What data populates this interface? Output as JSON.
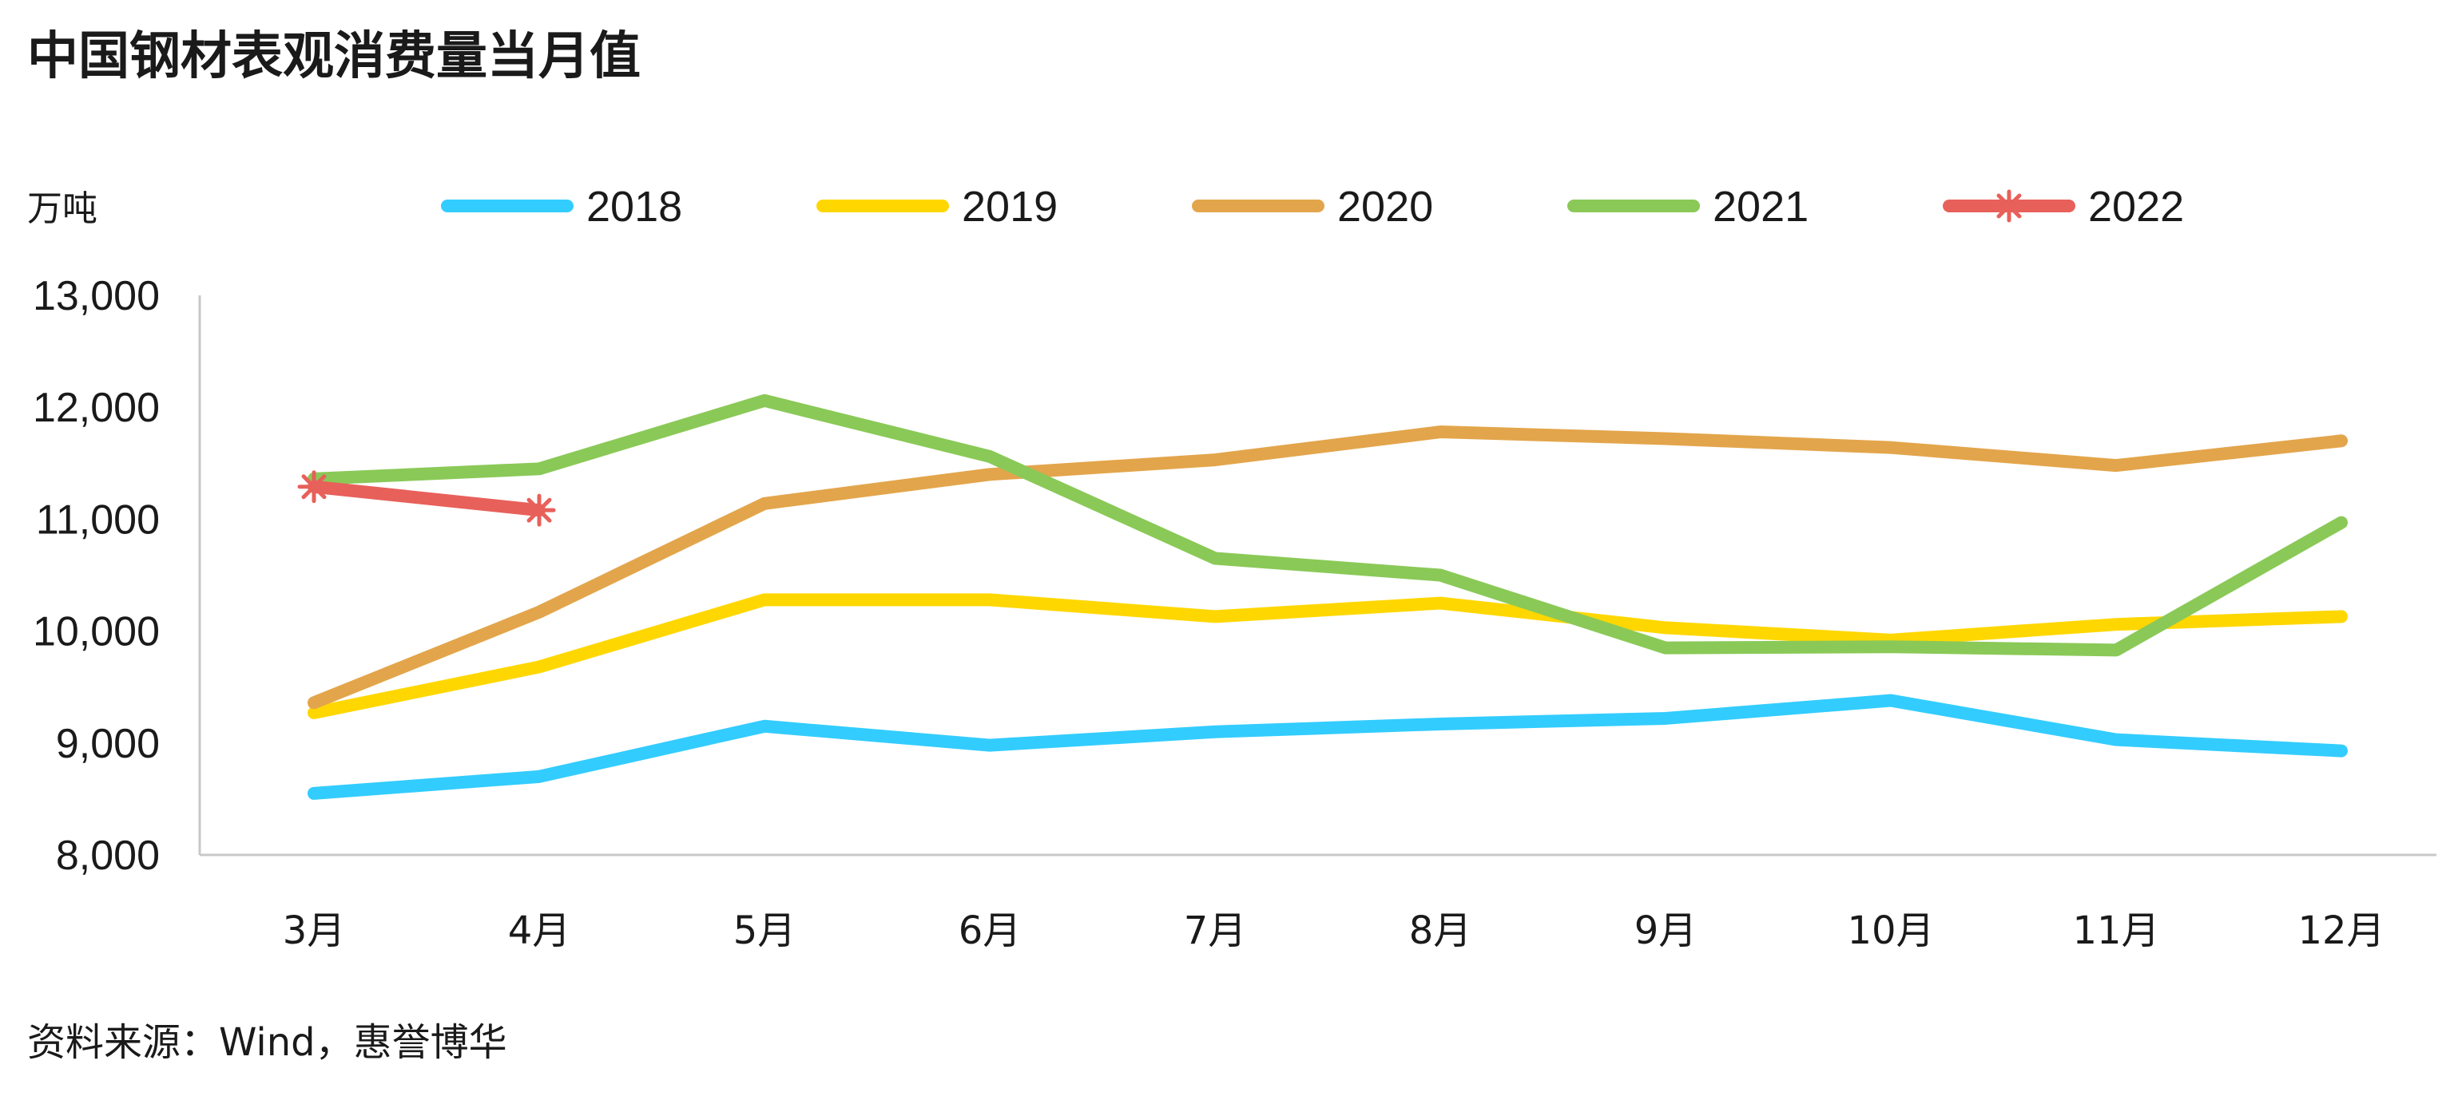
{
  "title": "中国钢材表观消费量当月值",
  "source": "资料来源：Wind，惠誉博华",
  "chart_data": {
    "type": "line",
    "ylabel": "万吨",
    "xlabel": "",
    "ylim": [
      8000,
      13000
    ],
    "yticks": [
      8000,
      9000,
      10000,
      11000,
      12000,
      13000
    ],
    "ytick_labels": [
      "8,000",
      "9,000",
      "10,000",
      "11,000",
      "12,000",
      "13,000"
    ],
    "categories": [
      "3月",
      "4月",
      "5月",
      "6月",
      "7月",
      "8月",
      "9月",
      "10月",
      "11月",
      "12月"
    ],
    "grid": false,
    "legend_position": "top",
    "series": [
      {
        "name": "2018",
        "color": "#33ccff",
        "marker": "none",
        "values": [
          8550,
          8700,
          9150,
          8980,
          9100,
          9170,
          9220,
          9380,
          9030,
          8930
        ]
      },
      {
        "name": "2019",
        "color": "#ffd700",
        "marker": "none",
        "values": [
          9270,
          9680,
          10280,
          10280,
          10130,
          10250,
          10030,
          9920,
          10060,
          10130
        ]
      },
      {
        "name": "2020",
        "color": "#e3a54b",
        "marker": "none",
        "values": [
          9360,
          10170,
          11140,
          11400,
          11530,
          11780,
          11720,
          11640,
          11480,
          11700
        ]
      },
      {
        "name": "2021",
        "color": "#8ac957",
        "marker": "none",
        "values": [
          11360,
          11450,
          12060,
          11560,
          10650,
          10500,
          9850,
          9860,
          9830,
          10970
        ]
      },
      {
        "name": "2022",
        "color": "#e8605a",
        "marker": "asterisk",
        "values": [
          11290,
          11080,
          null,
          null,
          null,
          null,
          null,
          null,
          null,
          null
        ]
      }
    ]
  }
}
